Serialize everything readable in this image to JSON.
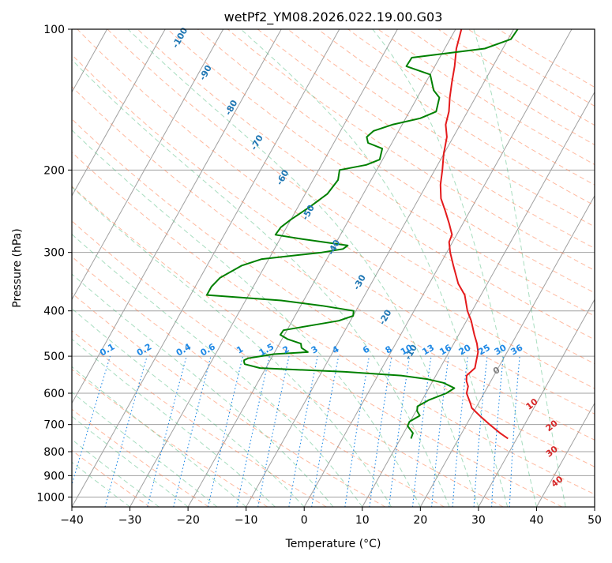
{
  "chart_data": {
    "type": "line",
    "title": "wetPf2_YM08.2026.022.19.00.G03",
    "xlabel": "Temperature (°C)",
    "ylabel": "Pressure (hPa)",
    "xlim": [
      -40,
      50
    ],
    "ylim": [
      1050,
      100
    ],
    "y_scale": "log",
    "x_ticks": [
      -40,
      -30,
      -20,
      -10,
      0,
      10,
      20,
      30,
      40,
      50
    ],
    "x_tick_labels": [
      "−40",
      "−30",
      "−20",
      "−10",
      "0",
      "10",
      "20",
      "30",
      "40",
      "50"
    ],
    "y_ticks": [
      100,
      200,
      300,
      400,
      500,
      600,
      700,
      800,
      900,
      1000
    ],
    "y_tick_labels": [
      "100",
      "200",
      "300",
      "400",
      "500",
      "600",
      "700",
      "800",
      "900",
      "1000"
    ],
    "grid": true,
    "colors": {
      "temperature": "#e41a1c",
      "dewpoint": "#008000",
      "isotherm": "#a0a0a0",
      "dry_adiabat": "#ff7f50",
      "moist_adiabat": "#3cb371",
      "mixing_ratio": "#1e88e5",
      "wetbulb_label": "#1f77b4",
      "lcl_marker": "#808080"
    },
    "series": [
      {
        "key": "temperature",
        "p": [
          750,
          730,
          700,
          670,
          645,
          630,
          600,
          580,
          565,
          550,
          530,
          510,
          490,
          470,
          450,
          420,
          400,
          370,
          350,
          320,
          300,
          285,
          275,
          260,
          245,
          230,
          215,
          200,
          185,
          170,
          160,
          150,
          140,
          130,
          120,
          110,
          100
        ],
        "x": [
          28.5,
          26.6,
          24.0,
          21.4,
          19.3,
          18.6,
          17.0,
          16.6,
          15.8,
          15.3,
          16.0,
          15.5,
          15.0,
          14.0,
          12.7,
          10.8,
          9.2,
          7.2,
          5.0,
          2.4,
          0.6,
          -0.6,
          -0.8,
          -2.4,
          -4.2,
          -6.2,
          -7.6,
          -8.7,
          -10.0,
          -11.1,
          -12.5,
          -13.2,
          -14.4,
          -15.5,
          -16.6,
          -18.0,
          -19.0
        ]
      },
      {
        "key": "dewpoint",
        "p": [
          750,
          730,
          705,
          690,
          670,
          655,
          640,
          620,
          600,
          585,
          570,
          560,
          550,
          540,
          530,
          520,
          515,
          510,
          505,
          500,
          495,
          490,
          480,
          470,
          460,
          450,
          440,
          430,
          420,
          410,
          400,
          390,
          380,
          370,
          355,
          340,
          320,
          310,
          300,
          295,
          290,
          280,
          275,
          265,
          255,
          240,
          225,
          210,
          200,
          195,
          190,
          180,
          175,
          170,
          165,
          160,
          155,
          150,
          140,
          135,
          125,
          120,
          115,
          110,
          105,
          100
        ],
        "x": [
          11.8,
          11.6,
          10.0,
          9.9,
          11.1,
          10.2,
          9.8,
          11.2,
          13.5,
          14.4,
          12.0,
          9.0,
          4.0,
          -6.0,
          -21.0,
          -24.0,
          -24.3,
          -24.5,
          -24.0,
          -22.0,
          -20.0,
          -14.3,
          -15.8,
          -16.3,
          -19.0,
          -20.7,
          -20.6,
          -16.4,
          -12.0,
          -10.0,
          -10.4,
          -16.3,
          -23.9,
          -37.2,
          -37.2,
          -36.6,
          -34.0,
          -31.2,
          -21.5,
          -18.2,
          -17.7,
          -27.0,
          -31.2,
          -31.0,
          -30.0,
          -28.0,
          -26.2,
          -25.7,
          -26.4,
          -22.3,
          -20.5,
          -21.1,
          -24.1,
          -24.9,
          -24.3,
          -21.7,
          -17.5,
          -15.4,
          -16.2,
          -17.9,
          -20.0,
          -24.9,
          -24.8,
          -13.1,
          -9.5,
          -9.3
        ]
      }
    ],
    "wetbulb_labels": [
      "-100",
      "-90",
      "-80",
      "-70",
      "-60",
      "-50",
      "-40",
      "-30",
      "-20",
      "-10"
    ],
    "wetbulb_label_values": [
      -100,
      -90,
      -80,
      -70,
      -60,
      -50,
      -40,
      -30,
      -20,
      -10
    ],
    "mixing_ratio_labels": [
      "0.1",
      "0.2",
      "0.4",
      "0.6",
      "1",
      "1.5",
      "2",
      "3",
      "4",
      "6",
      "8",
      "10",
      "13",
      "16",
      "20",
      "25",
      "30",
      "36"
    ],
    "mixing_ratio_values": [
      0.1,
      0.2,
      0.4,
      0.6,
      1,
      1.5,
      2,
      3,
      4,
      6,
      8,
      10,
      13,
      16,
      20,
      25,
      30,
      36
    ],
    "lcl_label": "0",
    "lcl_point": {
      "t": 19.9,
      "p": 536
    },
    "theta_e_labels": [
      "10",
      "20",
      "30",
      "40"
    ],
    "theta_e_values": [
      10,
      20,
      30,
      40
    ],
    "theta_e_points": [
      {
        "t": 29.8,
        "p": 640
      },
      {
        "t": 35.3,
        "p": 712
      },
      {
        "t": 37.8,
        "p": 808
      },
      {
        "t": 41.6,
        "p": 937
      }
    ]
  }
}
